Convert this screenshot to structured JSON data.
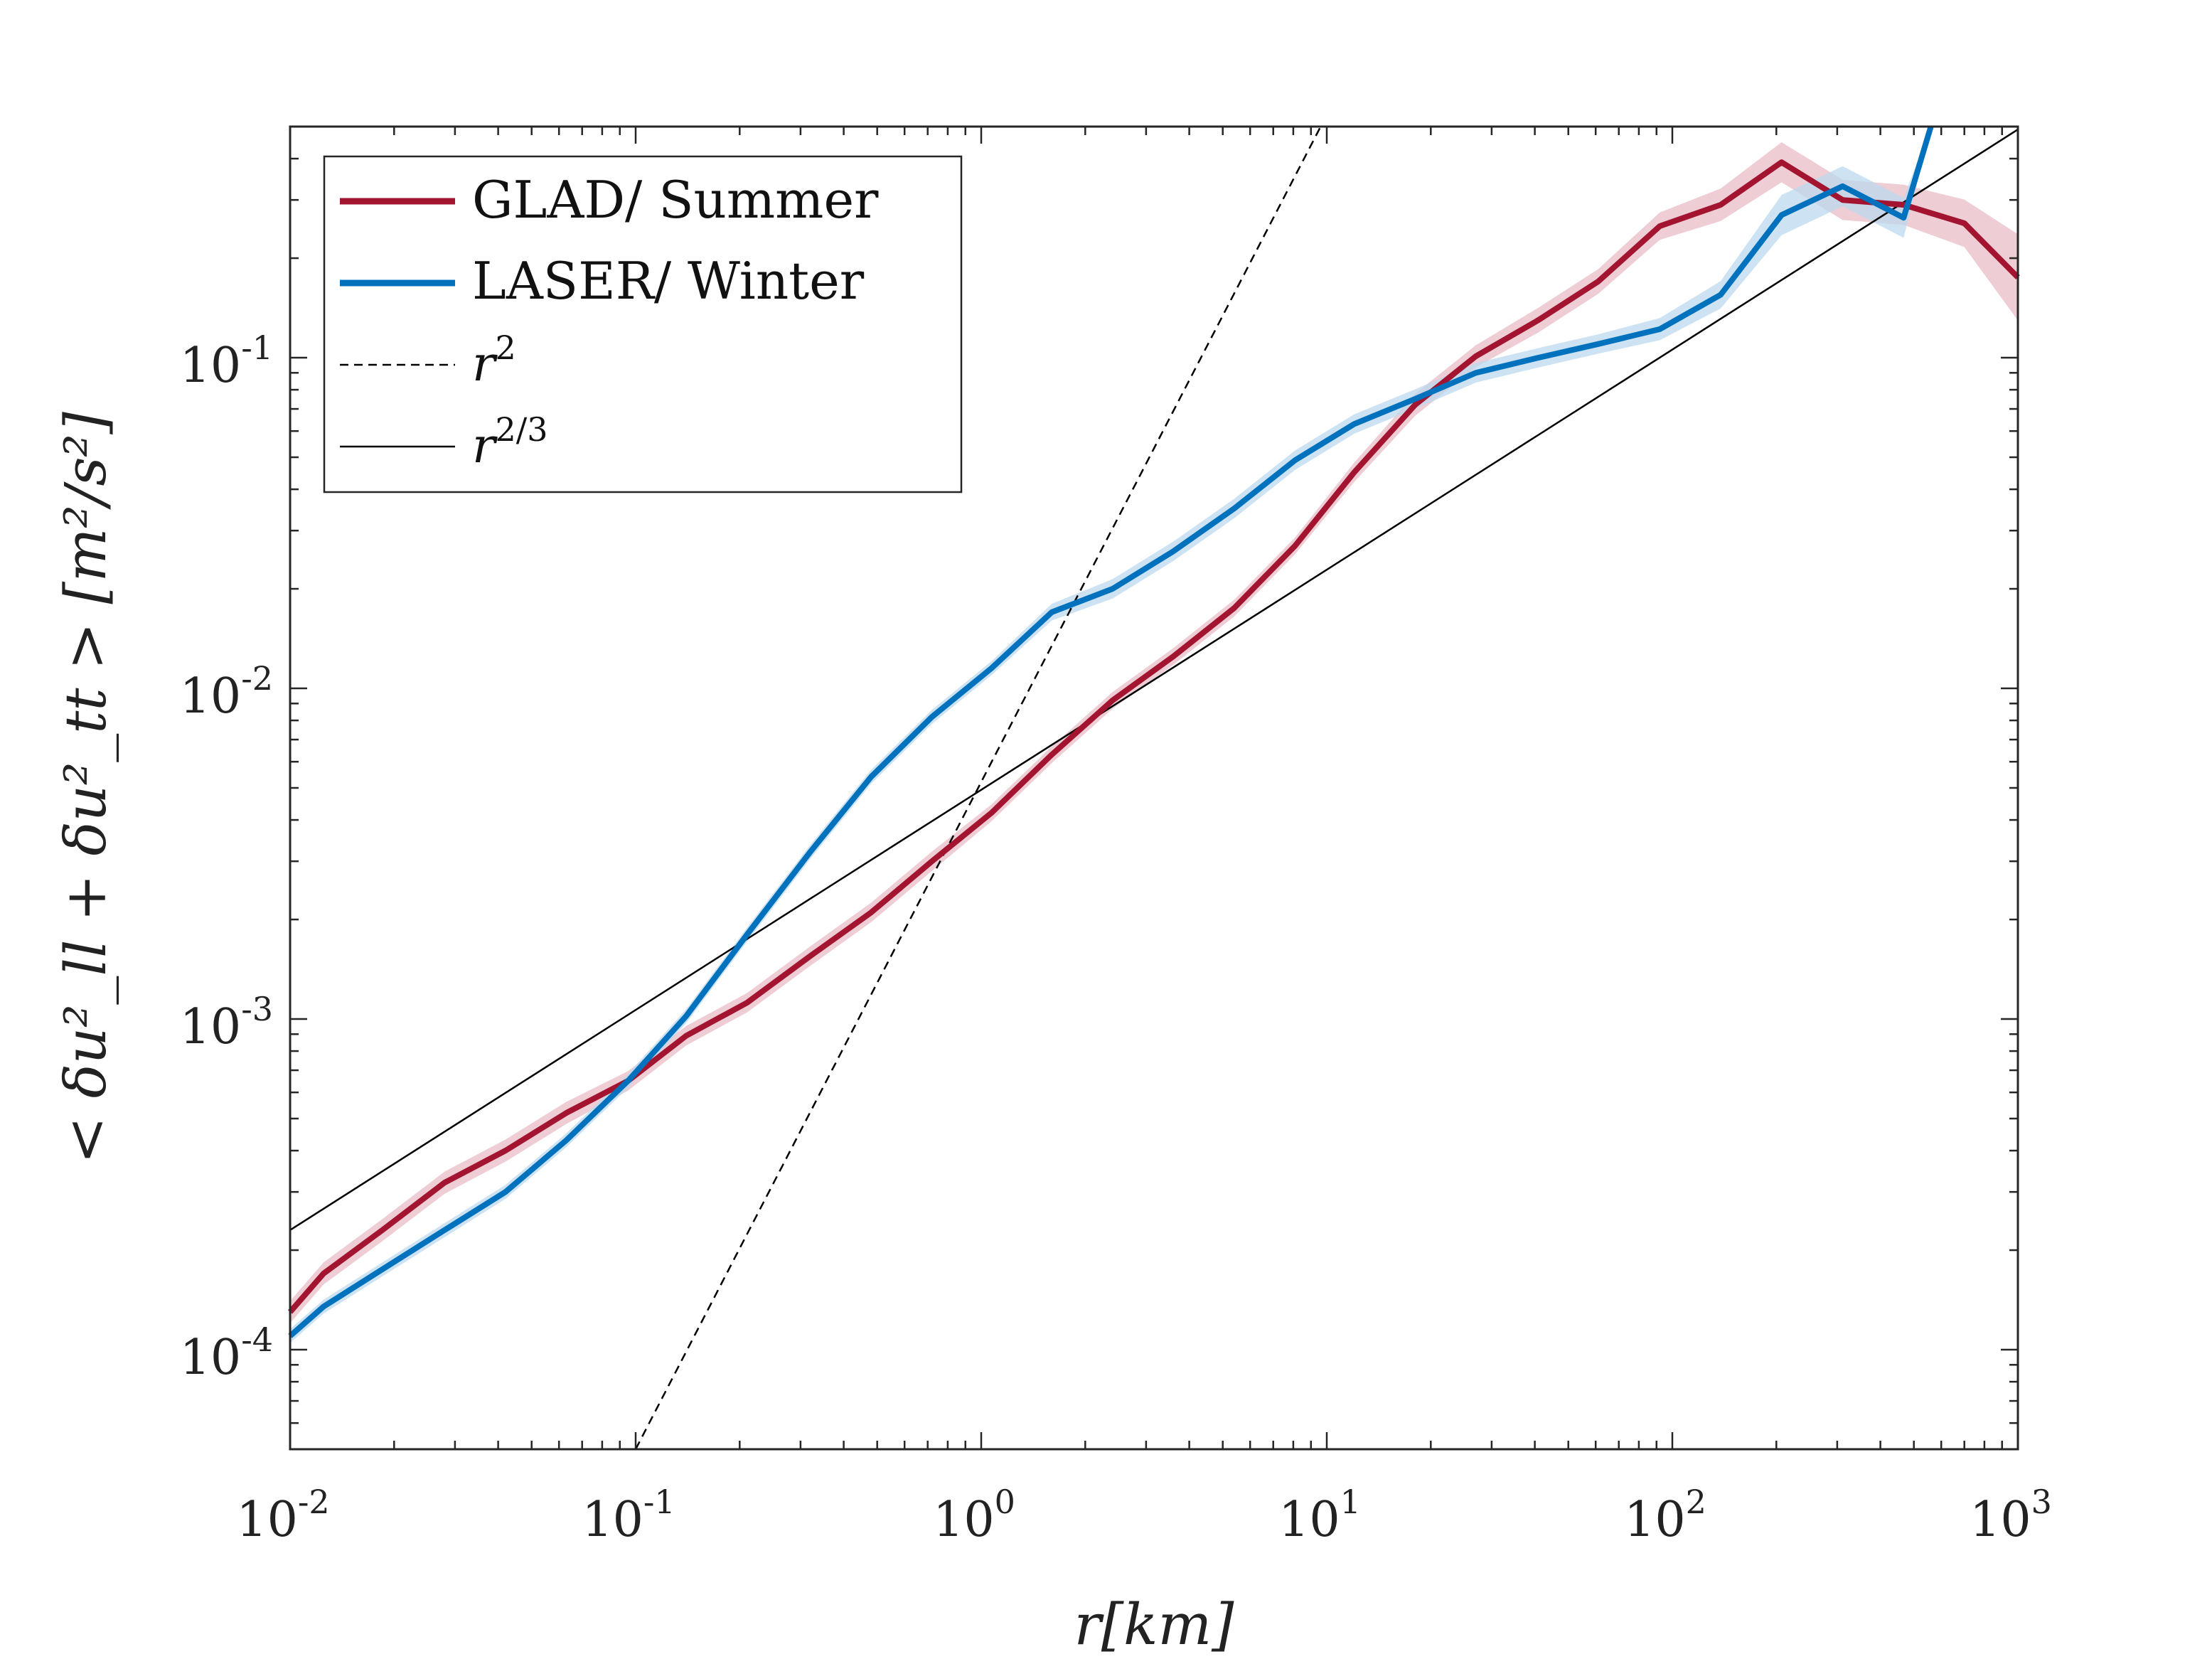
{
  "chart_data": {
    "type": "line",
    "title": "",
    "xlabel": "r[km]",
    "ylabel": "< δu²_ll + δu²_tt > [m²/s²]",
    "x_scale": "log",
    "y_scale": "log",
    "xlim": [
      0.01,
      1000
    ],
    "ylim": [
      5e-05,
      0.5
    ],
    "grid": false,
    "legend_position": "top-left",
    "x_ticks": [
      {
        "base": "10",
        "exp": "-2",
        "value": 0.01
      },
      {
        "base": "10",
        "exp": "-1",
        "value": 0.1
      },
      {
        "base": "10",
        "exp": "0",
        "value": 1
      },
      {
        "base": "10",
        "exp": "1",
        "value": 10
      },
      {
        "base": "10",
        "exp": "2",
        "value": 100
      },
      {
        "base": "10",
        "exp": "3",
        "value": 1000
      }
    ],
    "y_ticks": [
      {
        "base": "10",
        "exp": "-4",
        "value": 0.0001
      },
      {
        "base": "10",
        "exp": "-3",
        "value": 0.001
      },
      {
        "base": "10",
        "exp": "-2",
        "value": 0.01
      },
      {
        "base": "10",
        "exp": "-1",
        "value": 0.1
      }
    ],
    "series": [
      {
        "name": "GLAD/ Summer",
        "color": "#a2142f",
        "band_color": "#e8bcc5",
        "x": [
          0.01,
          0.0125,
          0.0185,
          0.028,
          0.042,
          0.063,
          0.095,
          0.14,
          0.21,
          0.32,
          0.48,
          0.72,
          1.07,
          1.6,
          2.4,
          3.6,
          5.4,
          8.1,
          12,
          18,
          27,
          41,
          61,
          92,
          138,
          207,
          311,
          467,
          700,
          1000
        ],
        "y": [
          0.00013,
          0.00017,
          0.00023,
          0.00032,
          0.0004,
          0.00052,
          0.00065,
          0.00089,
          0.00112,
          0.00155,
          0.0021,
          0.003,
          0.0042,
          0.0063,
          0.0092,
          0.0125,
          0.0175,
          0.027,
          0.045,
          0.072,
          0.101,
          0.13,
          0.17,
          0.25,
          0.29,
          0.39,
          0.3,
          0.29,
          0.255,
          0.175
        ],
        "band_halfwidth_factor": [
          1.08,
          1.08,
          1.08,
          1.08,
          1.08,
          1.08,
          1.07,
          1.07,
          1.07,
          1.07,
          1.07,
          1.07,
          1.06,
          1.06,
          1.06,
          1.06,
          1.06,
          1.06,
          1.07,
          1.08,
          1.08,
          1.09,
          1.09,
          1.1,
          1.12,
          1.15,
          1.15,
          1.15,
          1.18,
          1.35
        ]
      },
      {
        "name": "LASER/ Winter",
        "color": "#0072bd",
        "band_color": "#bcd8ee",
        "x": [
          0.01,
          0.0125,
          0.0185,
          0.028,
          0.042,
          0.063,
          0.095,
          0.14,
          0.21,
          0.32,
          0.48,
          0.72,
          1.07,
          1.6,
          2.4,
          3.6,
          5.4,
          8.1,
          12,
          18,
          27,
          41,
          61,
          92,
          138,
          207,
          311,
          467,
          560
        ],
        "y": [
          0.00011,
          0.000135,
          0.000175,
          0.00023,
          0.0003,
          0.00043,
          0.00065,
          0.00102,
          0.0018,
          0.0032,
          0.0054,
          0.0082,
          0.0115,
          0.017,
          0.02,
          0.026,
          0.035,
          0.049,
          0.063,
          0.075,
          0.09,
          0.1,
          0.11,
          0.122,
          0.155,
          0.27,
          0.33,
          0.265,
          0.5
        ],
        "band_halfwidth_factor": [
          1.05,
          1.05,
          1.05,
          1.05,
          1.05,
          1.05,
          1.05,
          1.05,
          1.05,
          1.05,
          1.05,
          1.05,
          1.05,
          1.06,
          1.07,
          1.07,
          1.07,
          1.07,
          1.07,
          1.07,
          1.07,
          1.07,
          1.07,
          1.08,
          1.1,
          1.15,
          1.15,
          1.15,
          1.0
        ]
      }
    ],
    "reference_lines": [
      {
        "name": "r²",
        "label_base": "r",
        "label_exp": "2",
        "style": "dashed",
        "color": "#000000",
        "x": [
          0.1,
          9.6
        ],
        "y": [
          5e-05,
          0.5
        ]
      },
      {
        "name": "r^(2/3)",
        "label_base": "r",
        "label_exp": "2/3",
        "style": "solid",
        "color": "#000000",
        "x": [
          0.01,
          1000
        ],
        "y": [
          0.00023,
          0.49
        ]
      }
    ]
  }
}
